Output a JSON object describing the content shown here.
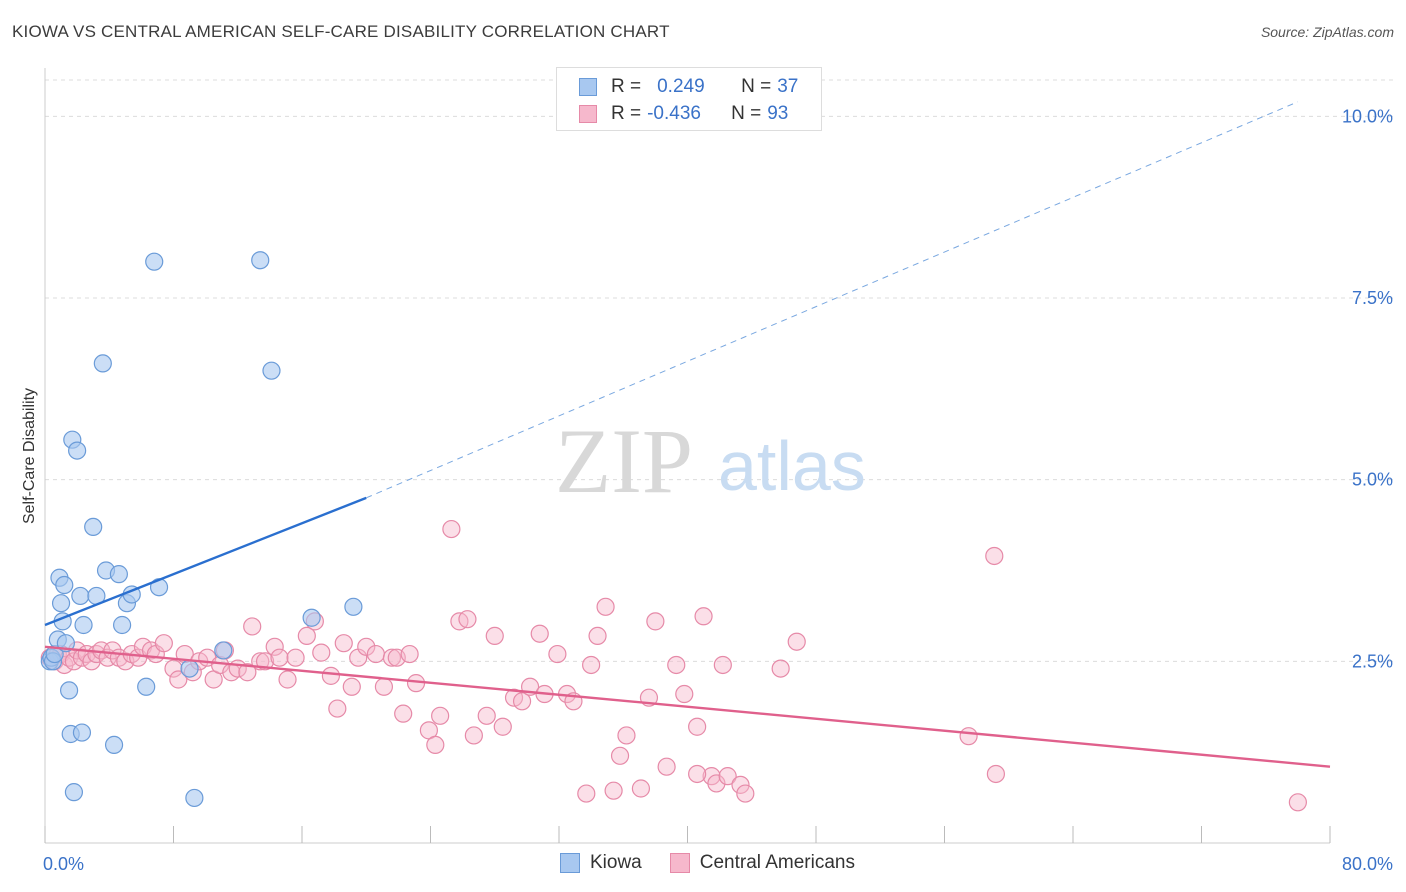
{
  "title": "KIOWA VS CENTRAL AMERICAN SELF-CARE DISABILITY CORRELATION CHART",
  "source": "Source: ZipAtlas.com",
  "watermark": {
    "zip": "ZIP",
    "atlas": "atlas"
  },
  "legend": {
    "kiowa": {
      "r_label": "R =",
      "r_value": "0.249",
      "n_label": "N =",
      "n_value": "37"
    },
    "central": {
      "r_label": "R =",
      "r_value": "-0.436",
      "n_label": "N =",
      "n_value": "93"
    }
  },
  "bottom_legend": {
    "kiowa": "Kiowa",
    "central": "Central Americans"
  },
  "colors": {
    "kiowa_fill": "#a8c8f0",
    "kiowa_stroke": "#6a9bd8",
    "kiowa_line": "#2a6fcf",
    "central_fill": "#f6b8cc",
    "central_stroke": "#e68aa8",
    "central_line": "#e0608c",
    "grid": "#dcdcdc",
    "tick_label": "#3a72c8"
  },
  "chart_data": {
    "type": "scatter",
    "title": "KIOWA VS CENTRAL AMERICAN SELF-CARE DISABILITY CORRELATION CHART",
    "xlabel": "",
    "ylabel": "Self-Care Disability",
    "xlim": [
      0,
      80
    ],
    "ylim": [
      0,
      10.5
    ],
    "x_tick_labels": [
      "0.0%",
      "80.0%"
    ],
    "y_ticks": [
      2.5,
      5.0,
      7.5,
      10.0
    ],
    "y_tick_labels": [
      "2.5%",
      "5.0%",
      "7.5%",
      "10.0%"
    ],
    "grid": "horizontal dashed",
    "legend_position": "top-center",
    "series": [
      {
        "name": "Kiowa",
        "points": [
          [
            0.3,
            2.5
          ],
          [
            0.4,
            2.55
          ],
          [
            0.5,
            2.5
          ],
          [
            0.6,
            2.6
          ],
          [
            0.8,
            2.8
          ],
          [
            0.9,
            3.65
          ],
          [
            1.0,
            3.3
          ],
          [
            1.1,
            3.05
          ],
          [
            1.2,
            3.55
          ],
          [
            1.3,
            2.75
          ],
          [
            1.5,
            2.1
          ],
          [
            1.6,
            1.5
          ],
          [
            1.7,
            5.55
          ],
          [
            1.8,
            0.7
          ],
          [
            2.0,
            5.4
          ],
          [
            2.2,
            3.4
          ],
          [
            2.4,
            3.0
          ],
          [
            2.3,
            1.52
          ],
          [
            3.0,
            4.35
          ],
          [
            3.2,
            3.4
          ],
          [
            3.6,
            6.6
          ],
          [
            3.8,
            3.75
          ],
          [
            4.3,
            1.35
          ],
          [
            4.6,
            3.7
          ],
          [
            4.8,
            3.0
          ],
          [
            5.1,
            3.3
          ],
          [
            5.4,
            3.42
          ],
          [
            6.3,
            2.15
          ],
          [
            6.8,
            8.0
          ],
          [
            7.1,
            3.52
          ],
          [
            9.0,
            2.4
          ],
          [
            9.3,
            0.62
          ],
          [
            11.1,
            2.65
          ],
          [
            13.4,
            8.02
          ],
          [
            14.1,
            6.5
          ],
          [
            16.6,
            3.1
          ],
          [
            19.2,
            3.25
          ]
        ],
        "trend": {
          "x": [
            0,
            20
          ],
          "y": [
            3.0,
            4.75
          ]
        },
        "trend_extension": {
          "x": [
            20,
            78
          ],
          "y": [
            4.75,
            10.2
          ]
        }
      },
      {
        "name": "Central Americans",
        "points": [
          [
            0.3,
            2.55
          ],
          [
            0.6,
            2.5
          ],
          [
            0.8,
            2.6
          ],
          [
            1.0,
            2.6
          ],
          [
            1.2,
            2.45
          ],
          [
            1.5,
            2.55
          ],
          [
            1.8,
            2.5
          ],
          [
            2.0,
            2.65
          ],
          [
            2.3,
            2.55
          ],
          [
            2.6,
            2.6
          ],
          [
            2.9,
            2.5
          ],
          [
            3.2,
            2.6
          ],
          [
            3.5,
            2.65
          ],
          [
            3.9,
            2.55
          ],
          [
            4.2,
            2.65
          ],
          [
            4.6,
            2.55
          ],
          [
            5.0,
            2.5
          ],
          [
            5.4,
            2.6
          ],
          [
            5.8,
            2.55
          ],
          [
            6.1,
            2.7
          ],
          [
            6.6,
            2.65
          ],
          [
            6.9,
            2.6
          ],
          [
            7.4,
            2.75
          ],
          [
            8.0,
            2.4
          ],
          [
            8.3,
            2.25
          ],
          [
            8.7,
            2.6
          ],
          [
            9.2,
            2.35
          ],
          [
            9.6,
            2.5
          ],
          [
            10.1,
            2.55
          ],
          [
            10.5,
            2.25
          ],
          [
            10.9,
            2.45
          ],
          [
            11.2,
            2.65
          ],
          [
            11.6,
            2.35
          ],
          [
            12.0,
            2.4
          ],
          [
            12.6,
            2.35
          ],
          [
            12.9,
            2.98
          ],
          [
            13.4,
            2.5
          ],
          [
            13.7,
            2.5
          ],
          [
            14.3,
            2.7
          ],
          [
            14.6,
            2.55
          ],
          [
            15.1,
            2.25
          ],
          [
            15.6,
            2.55
          ],
          [
            16.3,
            2.85
          ],
          [
            16.8,
            3.05
          ],
          [
            17.2,
            2.62
          ],
          [
            17.8,
            2.3
          ],
          [
            18.2,
            1.85
          ],
          [
            18.6,
            2.75
          ],
          [
            19.1,
            2.15
          ],
          [
            19.5,
            2.55
          ],
          [
            20.0,
            2.7
          ],
          [
            20.6,
            2.6
          ],
          [
            21.1,
            2.15
          ],
          [
            21.6,
            2.55
          ],
          [
            21.9,
            2.55
          ],
          [
            22.3,
            1.78
          ],
          [
            22.7,
            2.6
          ],
          [
            23.1,
            2.2
          ],
          [
            23.9,
            1.55
          ],
          [
            24.3,
            1.35
          ],
          [
            24.6,
            1.75
          ],
          [
            25.3,
            4.32
          ],
          [
            25.8,
            3.05
          ],
          [
            26.3,
            3.08
          ],
          [
            26.7,
            1.48
          ],
          [
            27.5,
            1.75
          ],
          [
            28.0,
            2.85
          ],
          [
            28.5,
            1.6
          ],
          [
            29.2,
            2.0
          ],
          [
            29.7,
            1.95
          ],
          [
            30.2,
            2.15
          ],
          [
            30.8,
            2.88
          ],
          [
            31.1,
            2.05
          ],
          [
            31.9,
            2.6
          ],
          [
            32.5,
            2.05
          ],
          [
            32.9,
            1.95
          ],
          [
            33.7,
            0.68
          ],
          [
            34.0,
            2.45
          ],
          [
            34.4,
            2.85
          ],
          [
            34.9,
            3.25
          ],
          [
            35.4,
            0.72
          ],
          [
            35.8,
            1.2
          ],
          [
            36.2,
            1.48
          ],
          [
            37.1,
            0.75
          ],
          [
            37.6,
            2.0
          ],
          [
            38.0,
            3.05
          ],
          [
            38.7,
            1.05
          ],
          [
            39.3,
            2.45
          ],
          [
            39.8,
            2.05
          ],
          [
            40.6,
            1.6
          ],
          [
            41.0,
            3.12
          ],
          [
            41.5,
            0.92
          ],
          [
            42.2,
            2.45
          ]
        ],
        "extra_points": [
          [
            40.6,
            0.95
          ],
          [
            41.8,
            0.82
          ],
          [
            42.5,
            0.92
          ],
          [
            43.3,
            0.8
          ],
          [
            43.6,
            0.68
          ],
          [
            45.8,
            2.4
          ],
          [
            46.8,
            2.77
          ],
          [
            57.5,
            1.47
          ],
          [
            59.1,
            3.95
          ],
          [
            59.2,
            0.95
          ],
          [
            78.0,
            0.56
          ]
        ],
        "trend": {
          "x": [
            0,
            80
          ],
          "y": [
            2.7,
            1.05
          ]
        }
      }
    ]
  }
}
